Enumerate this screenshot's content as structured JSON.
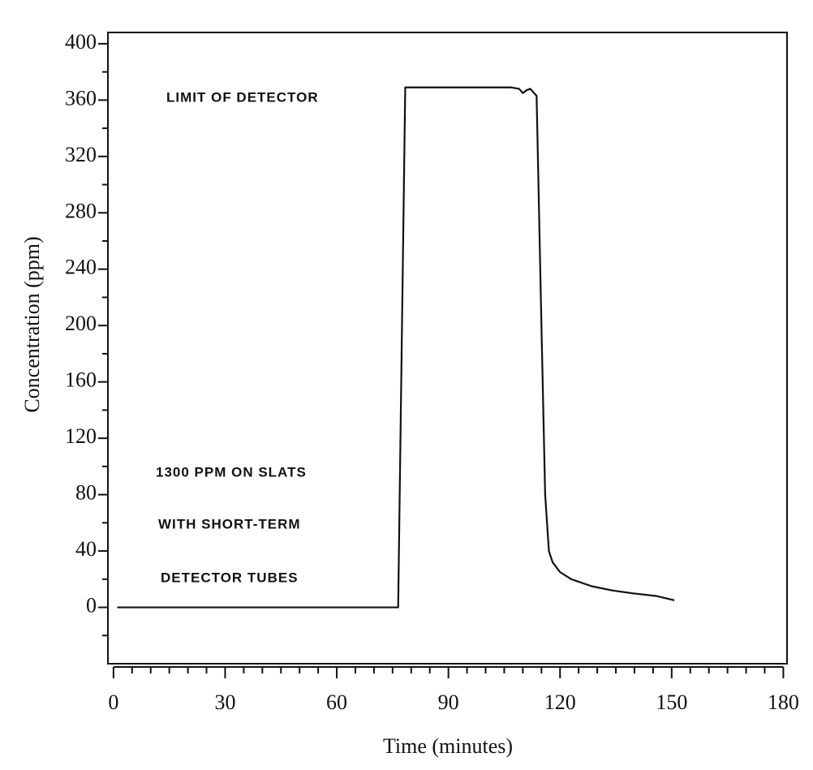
{
  "chart_data": {
    "type": "line",
    "x_label": "Time (minutes)",
    "y_label": "Concentration (ppm)",
    "annotations": [
      "LIMIT OF DETECTOR",
      "1300 PPM ON SLATS",
      "WITH SHORT-TERM",
      "DETECTOR TUBES"
    ],
    "xlim": [
      -1.5,
      181
    ],
    "ylim": [
      -40,
      408
    ],
    "xticks": [
      0,
      30,
      60,
      90,
      120,
      150,
      180
    ],
    "yticks": [
      0,
      40,
      80,
      120,
      160,
      200,
      240,
      280,
      320,
      360,
      400
    ],
    "xminorticks": [
      5,
      10,
      15,
      20,
      25,
      35,
      40,
      45,
      50,
      55,
      65,
      70,
      75,
      80,
      85,
      95,
      100,
      105,
      110,
      115,
      125,
      130,
      135,
      140,
      145,
      155,
      160,
      165,
      170,
      175
    ],
    "yminorticks": [
      -20,
      20,
      60,
      100,
      140,
      180,
      220,
      260,
      300,
      340,
      380
    ],
    "grid": false,
    "series": [
      {
        "color": "#111111",
        "x": [
          1,
          76.5,
          78.4,
          106.8,
          109,
          110,
          111,
          112,
          113.7,
          115,
          116,
          117,
          118,
          120,
          123,
          128.5,
          134,
          139.4,
          146,
          150.7
        ],
        "values": [
          0,
          0,
          369,
          369,
          368,
          365,
          367,
          368,
          363,
          200,
          80,
          40,
          32,
          25,
          20,
          15,
          12,
          10,
          8,
          5
        ]
      }
    ]
  }
}
